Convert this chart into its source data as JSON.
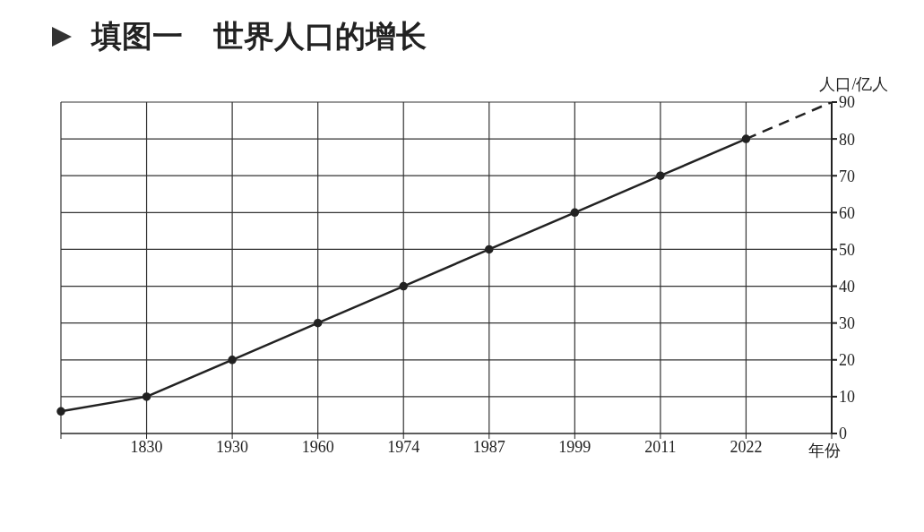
{
  "chart_data": {
    "type": "line",
    "title": "填图一　世界人口的增长",
    "xlabel": "年份",
    "ylabel": "人口/亿人",
    "categories": [
      null,
      "1830",
      "1930",
      "1960",
      "1974",
      "1987",
      "1999",
      "2011",
      "2022",
      null
    ],
    "series": [
      {
        "color": "#222222",
        "values": [
          6,
          10,
          20,
          30,
          40,
          50,
          60,
          70,
          80,
          null
        ],
        "marker": "circle",
        "line_style": "solid"
      },
      {
        "color": "#222222",
        "values": [
          null,
          null,
          null,
          null,
          null,
          null,
          null,
          null,
          80,
          90
        ],
        "marker": "none",
        "line_style": "dashed"
      }
    ],
    "ylim": [
      0,
      90
    ],
    "yticks": [
      0,
      10,
      20,
      30,
      40,
      50,
      60,
      70,
      80,
      90
    ],
    "grid": true
  }
}
